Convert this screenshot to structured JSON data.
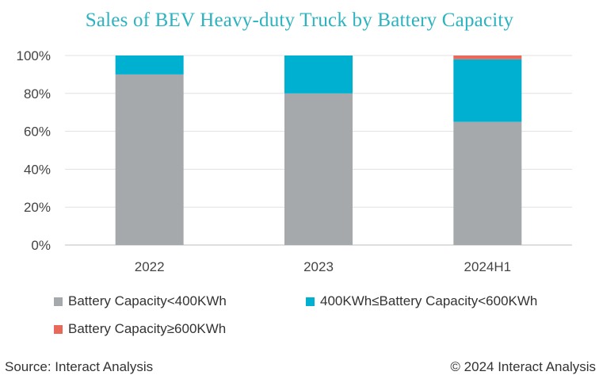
{
  "chart_data": {
    "type": "bar",
    "stacked": true,
    "title": "Sales of BEV Heavy-duty Truck by Battery Capacity",
    "categories": [
      "2022",
      "2023",
      "2024H1"
    ],
    "series": [
      {
        "name": "Battery Capacity<400KWh",
        "values": [
          90,
          80,
          65
        ],
        "color": "#a6a9ab"
      },
      {
        "name": "400KWh≤Battery Capacity<600KWh",
        "values": [
          10,
          20,
          33
        ],
        "color": "#00b0d0"
      },
      {
        "name": "Battery Capacity≥600KWh",
        "values": [
          0,
          0,
          2
        ],
        "color": "#e8685a"
      }
    ],
    "ylim": [
      0,
      100
    ],
    "yticks": [
      0,
      20,
      40,
      60,
      80,
      100
    ],
    "ytick_labels": [
      "0%",
      "20%",
      "40%",
      "60%",
      "80%",
      "100%"
    ],
    "xlabel": "",
    "ylabel": "",
    "grid": true,
    "legend_position": "bottom"
  },
  "footer": {
    "source": "Source: Interact Analysis",
    "copyright": "© 2024 Interact Analysis"
  }
}
